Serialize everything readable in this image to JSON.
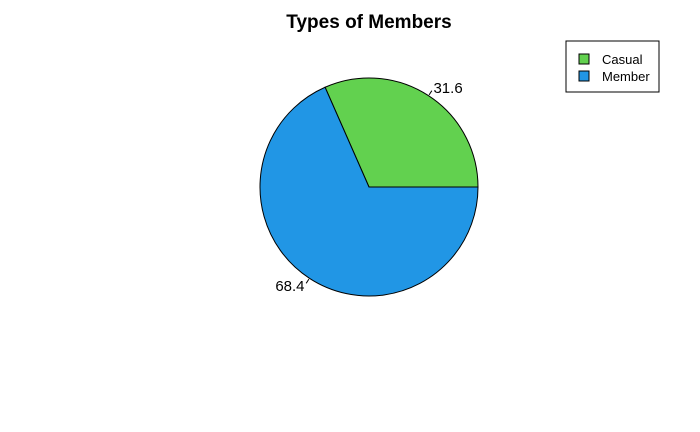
{
  "chart_data": {
    "type": "pie",
    "title": "Types of Members",
    "slices": [
      {
        "label": "Casual",
        "value": 31.6,
        "value_label": "31.6",
        "color": "#62d14f"
      },
      {
        "label": "Member",
        "value": 68.4,
        "value_label": "68.4",
        "color": "#2196e5"
      }
    ],
    "start_angle_deg": 0,
    "direction": "counterclockwise",
    "legend": {
      "position": "top-right",
      "entries": [
        "Casual",
        "Member"
      ]
    },
    "outline_color": "#000000"
  }
}
